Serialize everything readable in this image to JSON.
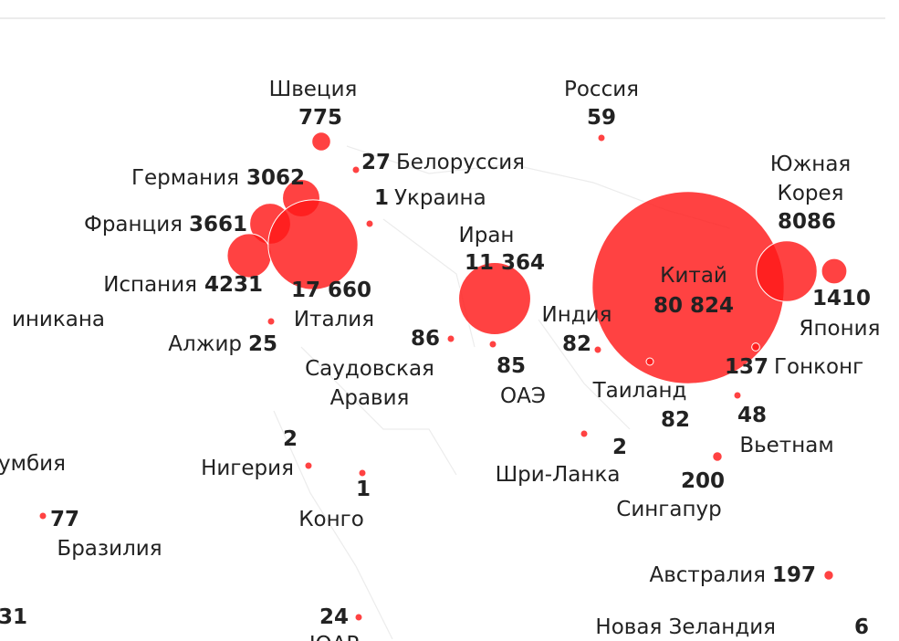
{
  "points": [
    {
      "name": "Швеция",
      "value": 775
    },
    {
      "name": "Россия",
      "value": 59
    },
    {
      "name": "Белоруссия",
      "value": 27
    },
    {
      "name": "Германия",
      "value": 3062
    },
    {
      "name": "Украина",
      "value": 1
    },
    {
      "name": "Франция",
      "value": 3661
    },
    {
      "name": "Испания",
      "value": 4231
    },
    {
      "name": "Италия",
      "value": 17660,
      "value_label": "17 660"
    },
    {
      "name": "Иран",
      "value": 11364,
      "value_label": "11 364"
    },
    {
      "name": "Китай",
      "value": 80824,
      "value_label": "80 824"
    },
    {
      "name": "Южная Корея",
      "value": 8086
    },
    {
      "name": "Япония",
      "value": 1410
    },
    {
      "name": "Индия",
      "value": 82
    },
    {
      "name": "Алжир",
      "value": 25
    },
    {
      "value": 86
    },
    {
      "name": "ОАЭ",
      "value": 85
    },
    {
      "name": "Гонконг",
      "value": 137
    },
    {
      "name": "Саудовская Аравия"
    },
    {
      "name": "Таиланд",
      "value": 82
    },
    {
      "name": "Вьетнам",
      "value": 48
    },
    {
      "name": "Нигерия",
      "value": 2
    },
    {
      "name": "Шри-Ланка",
      "value": 2
    },
    {
      "name": "Сингапур",
      "value": 200
    },
    {
      "name": "умбия"
    },
    {
      "name": "Конго",
      "value": 1
    },
    {
      "name": "Бразилия",
      "value": 77
    },
    {
      "name": "Австралия",
      "value": 197
    },
    {
      "name": "Новая Зеландия",
      "value": 6
    },
    {
      "name": "иникана"
    },
    {
      "value": 31
    },
    {
      "name": "ЮАР",
      "value": 24
    }
  ]
}
